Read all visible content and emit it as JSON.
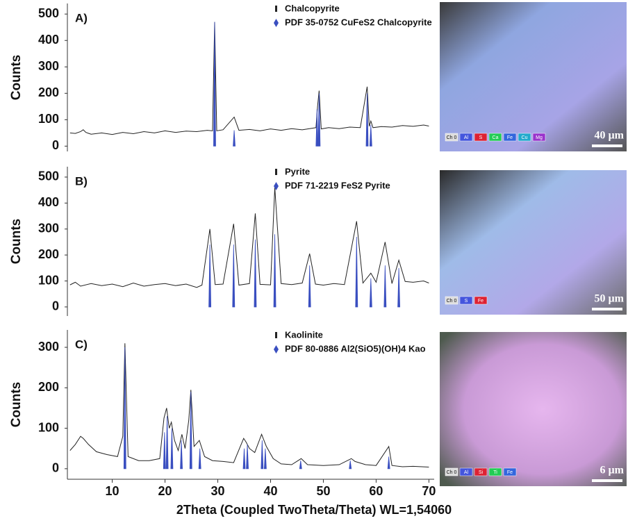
{
  "chart_data": [
    {
      "type": "line",
      "panel_label": "A)",
      "y_label": "Counts",
      "xlim": [
        1.5,
        71
      ],
      "ylim": [
        -20,
        540
      ],
      "yticks": [
        0,
        100,
        200,
        300,
        400,
        500
      ],
      "series": [
        {
          "name": "Chalcopyrite",
          "color": "#222222",
          "style": "line",
          "x": [
            2,
            3,
            4,
            4.5,
            5,
            6,
            8,
            10,
            12,
            14,
            16,
            18,
            20,
            22,
            24,
            26,
            28,
            29,
            29.4,
            29.8,
            31,
            33.1,
            34,
            36,
            38,
            40,
            42,
            44,
            46,
            48,
            48.6,
            48.9,
            49.2,
            49.6,
            51,
            53,
            55,
            57,
            58.3,
            58.7,
            59.0,
            59.4,
            61,
            63,
            65,
            67,
            69,
            70
          ],
          "values": [
            50,
            48,
            55,
            62,
            52,
            45,
            50,
            44,
            52,
            47,
            55,
            50,
            58,
            52,
            57,
            55,
            60,
            58,
            470,
            58,
            62,
            110,
            60,
            63,
            58,
            65,
            60,
            66,
            62,
            68,
            70,
            150,
            210,
            65,
            70,
            66,
            72,
            70,
            225,
            75,
            95,
            70,
            74,
            72,
            78,
            75,
            80,
            76
          ]
        },
        {
          "name": "PDF 35-0752 CuFeS2 Chalcopyrite",
          "color": "#3a4fc0",
          "style": "stick",
          "x": [
            29.4,
            33.1,
            48.8,
            49.2,
            58.3,
            59.0
          ],
          "values": [
            470,
            60,
            140,
            200,
            200,
            80
          ]
        }
      ]
    },
    {
      "type": "line",
      "panel_label": "B)",
      "y_label": "Counts",
      "xlim": [
        1.5,
        71
      ],
      "ylim": [
        -35,
        540
      ],
      "yticks": [
        0,
        100,
        200,
        300,
        400,
        500
      ],
      "series": [
        {
          "name": "Pyrite",
          "color": "#222222",
          "style": "line",
          "x": [
            2,
            3,
            4,
            6,
            8,
            10,
            12,
            14,
            16,
            18,
            20,
            22,
            24,
            26,
            27,
            28.5,
            29.5,
            31,
            33.0,
            34,
            36,
            37.1,
            38,
            40,
            40.8,
            42,
            44,
            46,
            47.4,
            48.5,
            50,
            52,
            54,
            56.3,
            57.5,
            59.0,
            60,
            61.7,
            63,
            64.3,
            65.5,
            67,
            69,
            70
          ],
          "values": [
            85,
            95,
            80,
            90,
            82,
            88,
            78,
            92,
            80,
            86,
            90,
            82,
            88,
            75,
            84,
            300,
            86,
            88,
            320,
            84,
            90,
            360,
            87,
            85,
            460,
            90,
            86,
            92,
            205,
            88,
            84,
            90,
            86,
            330,
            92,
            130,
            95,
            250,
            90,
            180,
            98,
            95,
            100,
            92
          ]
        },
        {
          "name": "PDF 71-2219 FeS2 Pyrite",
          "color": "#3a4fc0",
          "style": "stick",
          "x": [
            28.5,
            33.0,
            37.1,
            40.8,
            47.4,
            56.3,
            59.0,
            61.7,
            64.3
          ],
          "values": [
            240,
            240,
            260,
            280,
            160,
            270,
            110,
            160,
            150
          ]
        }
      ]
    },
    {
      "type": "line",
      "panel_label": "C)",
      "y_label": "Counts",
      "x_label": "2Theta (Coupled TwoTheta/Theta) WL=1,54060",
      "xlim": [
        1.5,
        71
      ],
      "xticks": [
        10,
        20,
        30,
        40,
        50,
        60,
        70
      ],
      "ylim": [
        -26,
        343
      ],
      "yticks": [
        0,
        100,
        200,
        300
      ],
      "series": [
        {
          "name": "Kaolinite",
          "color": "#222222",
          "style": "line",
          "x": [
            2,
            3,
            4,
            4.5,
            5.5,
            7,
            9,
            11,
            12.0,
            12.4,
            13,
            15,
            17,
            19,
            19.8,
            20.3,
            20.8,
            21.2,
            21.8,
            22.5,
            23.2,
            23.8,
            24.5,
            24.9,
            25.5,
            26.5,
            27.5,
            29,
            31,
            33,
            34.9,
            35.4,
            36,
            37,
            38.3,
            39.2,
            40.5,
            42,
            44,
            45.8,
            47,
            50,
            53,
            55.3,
            56,
            58,
            60,
            62.4,
            63,
            65,
            67,
            70
          ],
          "values": [
            45,
            60,
            80,
            75,
            60,
            42,
            35,
            30,
            80,
            310,
            30,
            20,
            20,
            25,
            125,
            150,
            100,
            115,
            70,
            45,
            85,
            50,
            120,
            195,
            55,
            70,
            30,
            20,
            18,
            15,
            75,
            65,
            50,
            40,
            85,
            55,
            25,
            12,
            10,
            25,
            10,
            8,
            10,
            25,
            18,
            10,
            8,
            55,
            8,
            5,
            6,
            4
          ]
        },
        {
          "name": "PDF 80-0886 Al2(SiO5)(OH)4 Kao",
          "color": "#3a4fc0",
          "style": "stick",
          "x": [
            12.4,
            19.9,
            20.4,
            21.3,
            23.1,
            24.9,
            26.6,
            35.0,
            35.6,
            38.4,
            39.0,
            45.7,
            55.1,
            62.4
          ],
          "values": [
            300,
            90,
            130,
            100,
            70,
            190,
            50,
            50,
            60,
            70,
            50,
            20,
            20,
            30
          ]
        }
      ]
    }
  ],
  "micrographs": [
    {
      "scale": "40 µm",
      "channels": [
        "Ch 0",
        "Al",
        "S",
        "Ca",
        "Fe",
        "Cu",
        "Mg"
      ]
    },
    {
      "scale": "50 µm",
      "channels": [
        "Ch 0",
        "S",
        "Fe"
      ]
    },
    {
      "scale": "6 µm",
      "channels": [
        "Ch 0",
        "Al",
        "Si",
        "Ti",
        "Fe"
      ]
    }
  ]
}
